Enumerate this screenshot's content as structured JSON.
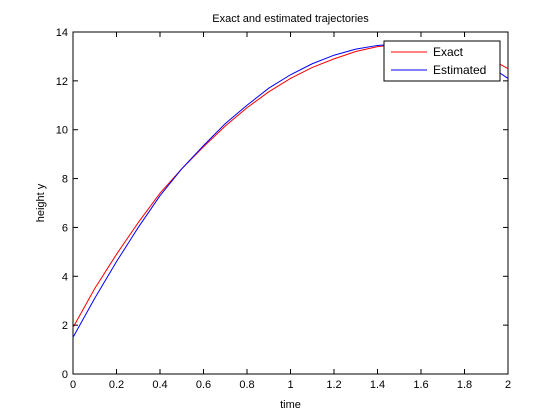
{
  "chart_data": {
    "type": "line",
    "title": "Exact and estimated trajectories",
    "xlabel": "time",
    "ylabel": "height y",
    "xlim": [
      0,
      2
    ],
    "ylim": [
      0,
      14
    ],
    "xticks": [
      0,
      0.2,
      0.4,
      0.6,
      0.8,
      1,
      1.2,
      1.4,
      1.6,
      1.8,
      2
    ],
    "xtick_labels": [
      "0",
      "0.2",
      "0.4",
      "0.6",
      "0.8",
      "1",
      "1.2",
      "1.4",
      "1.6",
      "1.8",
      "2"
    ],
    "yticks": [
      0,
      2,
      4,
      6,
      8,
      10,
      12,
      14
    ],
    "ytick_labels": [
      "0",
      "2",
      "4",
      "6",
      "8",
      "10",
      "12",
      "14"
    ],
    "grid": false,
    "legend": "top-right",
    "series": [
      {
        "name": "Exact",
        "color": "#ff0000",
        "x": [
          0,
          0.1,
          0.2,
          0.3,
          0.4,
          0.5,
          0.6,
          0.7,
          0.8,
          0.9,
          1.0,
          1.1,
          1.2,
          1.3,
          1.4,
          1.5,
          1.6,
          1.7,
          1.8,
          1.9,
          2.0
        ],
        "y": [
          1.9,
          3.5,
          4.9,
          6.2,
          7.4,
          8.4,
          9.3,
          10.15,
          10.9,
          11.55,
          12.1,
          12.55,
          12.9,
          13.2,
          13.4,
          13.5,
          13.5,
          13.45,
          13.3,
          13.0,
          12.5
        ]
      },
      {
        "name": "Estimated",
        "color": "#0000ff",
        "x": [
          0,
          0.1,
          0.2,
          0.3,
          0.4,
          0.5,
          0.6,
          0.7,
          0.8,
          0.9,
          1.0,
          1.1,
          1.2,
          1.3,
          1.4,
          1.5,
          1.6,
          1.7,
          1.8,
          1.9,
          2.0
        ],
        "y": [
          1.5,
          3.1,
          4.6,
          6.0,
          7.3,
          8.4,
          9.35,
          10.25,
          11.0,
          11.7,
          12.25,
          12.7,
          13.05,
          13.3,
          13.45,
          13.5,
          13.45,
          13.35,
          13.1,
          12.7,
          12.1
        ]
      }
    ]
  }
}
